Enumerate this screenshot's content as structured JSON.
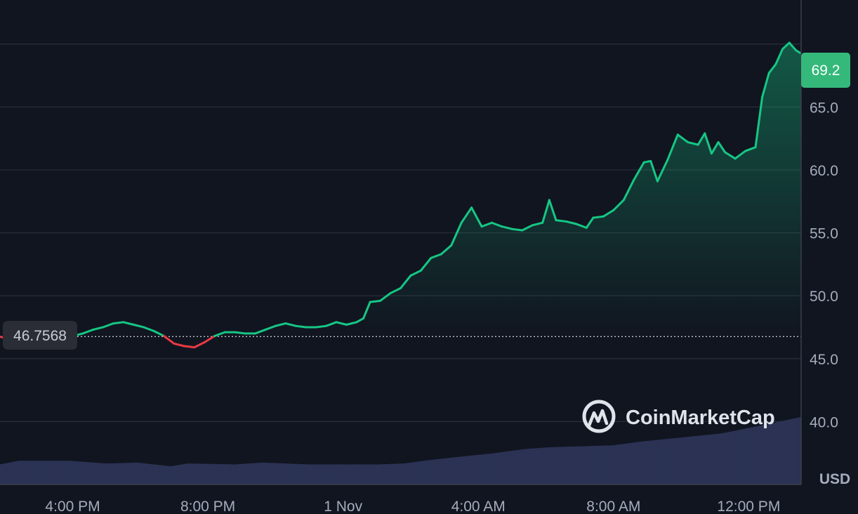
{
  "chart_data": {
    "type": "area",
    "watermark": "CoinMarketCap",
    "currency": "USD",
    "baseline_value": 46.7568,
    "baseline_label": "46.7568",
    "current_value": 69.2,
    "current_label": "69.2",
    "ylim": [
      35,
      73.5
    ],
    "y_ticks": [
      {
        "value": 40,
        "label": "40.0"
      },
      {
        "value": 45,
        "label": "45.0"
      },
      {
        "value": 50,
        "label": "50.0"
      },
      {
        "value": 55,
        "label": "55.0"
      },
      {
        "value": 60,
        "label": "60.0"
      },
      {
        "value": 65,
        "label": "65.0"
      },
      {
        "value": 70,
        "label": ""
      }
    ],
    "x_ticks": [
      {
        "t": 5.6,
        "label": "4:00 PM"
      },
      {
        "t": 9.6,
        "label": "8:00 PM"
      },
      {
        "t": 13.6,
        "label": "1 Nov"
      },
      {
        "t": 17.6,
        "label": "4:00 AM"
      },
      {
        "t": 21.6,
        "label": "8:00 AM"
      },
      {
        "t": 25.6,
        "label": "12:00 PM"
      }
    ],
    "t_range": [
      3.45,
      26.65
    ],
    "colors": {
      "up": "#16c784",
      "down": "#ea3943",
      "volume": "#2b3254"
    },
    "price_series": [
      [
        3.45,
        46.75
      ],
      [
        3.8,
        46.5
      ],
      [
        4.3,
        46.6
      ],
      [
        4.8,
        46.7
      ],
      [
        5.2,
        46.7
      ],
      [
        5.6,
        46.8
      ],
      [
        5.9,
        47.0
      ],
      [
        6.2,
        47.3
      ],
      [
        6.5,
        47.5
      ],
      [
        6.8,
        47.8
      ],
      [
        7.1,
        47.9
      ],
      [
        7.4,
        47.7
      ],
      [
        7.7,
        47.5
      ],
      [
        8.0,
        47.2
      ],
      [
        8.3,
        46.8
      ],
      [
        8.6,
        46.2
      ],
      [
        8.9,
        46.0
      ],
      [
        9.2,
        45.9
      ],
      [
        9.5,
        46.3
      ],
      [
        9.8,
        46.8
      ],
      [
        10.1,
        47.1
      ],
      [
        10.4,
        47.1
      ],
      [
        10.7,
        47.0
      ],
      [
        11.0,
        47.0
      ],
      [
        11.3,
        47.3
      ],
      [
        11.6,
        47.6
      ],
      [
        11.9,
        47.8
      ],
      [
        12.2,
        47.6
      ],
      [
        12.5,
        47.5
      ],
      [
        12.8,
        47.5
      ],
      [
        13.1,
        47.6
      ],
      [
        13.4,
        47.9
      ],
      [
        13.7,
        47.7
      ],
      [
        14.0,
        47.9
      ],
      [
        14.2,
        48.2
      ],
      [
        14.4,
        49.5
      ],
      [
        14.7,
        49.6
      ],
      [
        15.0,
        50.2
      ],
      [
        15.3,
        50.6
      ],
      [
        15.6,
        51.6
      ],
      [
        15.9,
        52.0
      ],
      [
        16.2,
        53.0
      ],
      [
        16.5,
        53.3
      ],
      [
        16.8,
        54.0
      ],
      [
        17.1,
        55.8
      ],
      [
        17.4,
        57.0
      ],
      [
        17.7,
        55.5
      ],
      [
        18.0,
        55.8
      ],
      [
        18.3,
        55.5
      ],
      [
        18.6,
        55.3
      ],
      [
        18.9,
        55.2
      ],
      [
        19.2,
        55.6
      ],
      [
        19.5,
        55.8
      ],
      [
        19.7,
        57.6
      ],
      [
        19.9,
        56.0
      ],
      [
        20.2,
        55.9
      ],
      [
        20.5,
        55.7
      ],
      [
        20.8,
        55.4
      ],
      [
        21.0,
        56.2
      ],
      [
        21.3,
        56.3
      ],
      [
        21.6,
        56.8
      ],
      [
        21.9,
        57.6
      ],
      [
        22.2,
        59.2
      ],
      [
        22.5,
        60.6
      ],
      [
        22.7,
        60.7
      ],
      [
        22.9,
        59.1
      ],
      [
        23.2,
        60.8
      ],
      [
        23.5,
        62.8
      ],
      [
        23.8,
        62.2
      ],
      [
        24.1,
        62.0
      ],
      [
        24.3,
        62.9
      ],
      [
        24.5,
        61.3
      ],
      [
        24.7,
        62.2
      ],
      [
        24.9,
        61.4
      ],
      [
        25.2,
        60.9
      ],
      [
        25.5,
        61.5
      ],
      [
        25.8,
        61.8
      ],
      [
        26.0,
        65.8
      ],
      [
        26.2,
        67.7
      ],
      [
        26.4,
        68.4
      ],
      [
        26.6,
        69.6
      ],
      [
        26.8,
        70.1
      ],
      [
        27.0,
        69.5
      ],
      [
        27.15,
        69.25
      ]
    ],
    "volume_series": [
      [
        3.45,
        0.22
      ],
      [
        4.0,
        0.26
      ],
      [
        5.5,
        0.26
      ],
      [
        6.6,
        0.23
      ],
      [
        7.5,
        0.24
      ],
      [
        8.5,
        0.2
      ],
      [
        9.0,
        0.23
      ],
      [
        10.4,
        0.22
      ],
      [
        11.2,
        0.24
      ],
      [
        12.6,
        0.22
      ],
      [
        13.6,
        0.22
      ],
      [
        14.6,
        0.22
      ],
      [
        15.4,
        0.23
      ],
      [
        16.2,
        0.27
      ],
      [
        17.2,
        0.31
      ],
      [
        18.0,
        0.34
      ],
      [
        19.0,
        0.39
      ],
      [
        19.8,
        0.41
      ],
      [
        20.8,
        0.42
      ],
      [
        21.6,
        0.43
      ],
      [
        22.4,
        0.47
      ],
      [
        23.2,
        0.5
      ],
      [
        24.0,
        0.53
      ],
      [
        24.8,
        0.56
      ],
      [
        25.6,
        0.62
      ],
      [
        26.4,
        0.68
      ],
      [
        27.15,
        0.74
      ]
    ]
  }
}
